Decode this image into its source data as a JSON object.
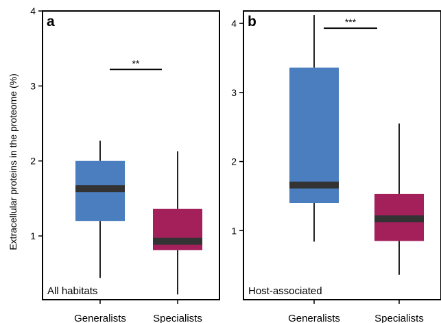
{
  "figure": {
    "ylabel": "Extracellular proteins in the proteome (%)"
  },
  "colors": {
    "generalists": "#4a7ebf",
    "specialists": "#a3205a",
    "median": "#333333",
    "whisker": "#222222"
  },
  "chart_data": [
    {
      "type": "box",
      "panel_label": "a",
      "annotation": "All habitats",
      "categories": [
        "Generalists",
        "Specialists"
      ],
      "ylim": [
        0.15,
        4.0
      ],
      "yticks": [
        1,
        2,
        3,
        4
      ],
      "boxes": [
        {
          "category": "Generalists",
          "min": 0.44,
          "q1": 1.2,
          "median": 1.63,
          "q3": 2.0,
          "max": 2.27
        },
        {
          "category": "Specialists",
          "min": 0.22,
          "q1": 0.81,
          "median": 0.93,
          "q3": 1.36,
          "max": 2.13
        }
      ],
      "significance": {
        "label": "**",
        "y": 3.22
      }
    },
    {
      "type": "box",
      "panel_label": "b",
      "annotation": "Host-associated",
      "categories": [
        "Generalists",
        "Specialists"
      ],
      "ylim": [
        0.0,
        4.18
      ],
      "yticks": [
        1,
        2,
        3,
        4
      ],
      "boxes": [
        {
          "category": "Generalists",
          "min": 0.84,
          "q1": 1.4,
          "median": 1.66,
          "q3": 3.36,
          "max": 4.12
        },
        {
          "category": "Specialists",
          "min": 0.36,
          "q1": 0.85,
          "median": 1.17,
          "q3": 1.53,
          "max": 2.55
        }
      ],
      "significance": {
        "label": "***",
        "y": 3.93
      }
    }
  ]
}
